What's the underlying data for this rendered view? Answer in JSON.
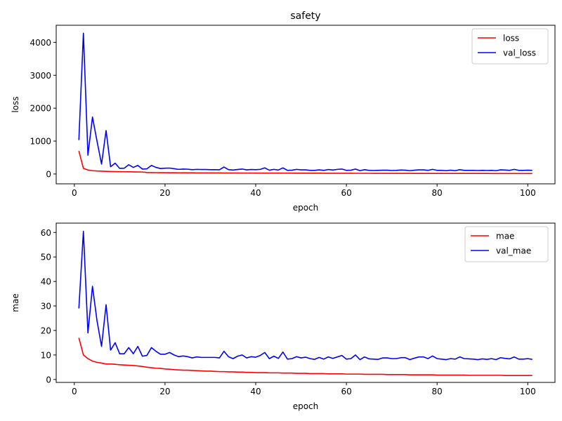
{
  "chart_data": [
    {
      "type": "line",
      "title": "safety",
      "xlabel": "epoch",
      "ylabel": "loss",
      "xlim": [
        -4,
        106
      ],
      "ylim": [
        -300,
        4520
      ],
      "xticks": [
        0,
        20,
        40,
        60,
        80,
        100
      ],
      "yticks": [
        0,
        1000,
        2000,
        3000,
        4000
      ],
      "grid": false,
      "legend": "top-right",
      "x": [
        1,
        2,
        3,
        4,
        5,
        6,
        7,
        8,
        9,
        10,
        11,
        12,
        13,
        14,
        15,
        16,
        17,
        18,
        19,
        20,
        21,
        22,
        23,
        24,
        25,
        26,
        27,
        28,
        29,
        30,
        31,
        32,
        33,
        34,
        35,
        36,
        37,
        38,
        39,
        40,
        41,
        42,
        43,
        44,
        45,
        46,
        47,
        48,
        49,
        50,
        51,
        52,
        53,
        54,
        55,
        56,
        57,
        58,
        59,
        60,
        61,
        62,
        63,
        64,
        65,
        66,
        67,
        68,
        69,
        70,
        71,
        72,
        73,
        74,
        75,
        76,
        77,
        78,
        79,
        80,
        81,
        82,
        83,
        84,
        85,
        86,
        87,
        88,
        89,
        90,
        91,
        92,
        93,
        94,
        95,
        96,
        97,
        98,
        99,
        100,
        101
      ],
      "series": [
        {
          "name": "loss",
          "color": "#ff0000",
          "values": [
            700,
            170,
            120,
            100,
            90,
            85,
            80,
            75,
            72,
            70,
            68,
            66,
            64,
            62,
            60,
            45,
            43,
            41,
            40,
            39,
            38,
            37,
            36,
            35,
            35,
            34,
            33,
            33,
            32,
            32,
            31,
            31,
            30,
            30,
            29,
            29,
            28,
            28,
            28,
            27,
            27,
            27,
            26,
            26,
            26,
            25,
            25,
            25,
            24,
            24,
            24,
            23,
            23,
            23,
            22,
            22,
            22,
            22,
            21,
            21,
            21,
            20,
            20,
            20,
            20,
            19,
            19,
            19,
            19,
            18,
            18,
            18,
            18,
            18,
            17,
            17,
            17,
            17,
            17,
            16,
            16,
            16,
            16,
            16,
            16,
            15,
            15,
            15,
            15,
            15,
            15,
            14,
            14,
            14,
            14,
            14,
            14,
            14,
            13,
            13,
            13
          ]
        },
        {
          "name": "val_loss",
          "color": "#0000ff",
          "values": [
            1030,
            4280,
            570,
            1730,
            1000,
            300,
            1320,
            220,
            330,
            170,
            175,
            280,
            200,
            260,
            150,
            155,
            260,
            200,
            165,
            175,
            180,
            160,
            140,
            150,
            145,
            130,
            140,
            135,
            135,
            130,
            130,
            128,
            210,
            130,
            120,
            135,
            150,
            125,
            135,
            130,
            140,
            185,
            115,
            140,
            120,
            185,
            110,
            115,
            140,
            125,
            125,
            110,
            110,
            125,
            110,
            135,
            120,
            140,
            150,
            110,
            115,
            150,
            100,
            130,
            110,
            105,
            110,
            115,
            115,
            105,
            110,
            120,
            115,
            100,
            115,
            125,
            125,
            110,
            140,
            110,
            110,
            100,
            115,
            100,
            130,
            110,
            110,
            110,
            105,
            110,
            105,
            110,
            100,
            125,
            120,
            110,
            140,
            110,
            110,
            115,
            110
          ]
        }
      ]
    },
    {
      "type": "line",
      "title": "",
      "xlabel": "epoch",
      "ylabel": "mae",
      "xlim": [
        -4,
        106
      ],
      "ylim": [
        -1.2,
        63.8
      ],
      "xticks": [
        0,
        20,
        40,
        60,
        80,
        100
      ],
      "yticks": [
        0,
        10,
        20,
        30,
        40,
        50,
        60
      ],
      "grid": false,
      "legend": "top-right",
      "x": [
        1,
        2,
        3,
        4,
        5,
        6,
        7,
        8,
        9,
        10,
        11,
        12,
        13,
        14,
        15,
        16,
        17,
        18,
        19,
        20,
        21,
        22,
        23,
        24,
        25,
        26,
        27,
        28,
        29,
        30,
        31,
        32,
        33,
        34,
        35,
        36,
        37,
        38,
        39,
        40,
        41,
        42,
        43,
        44,
        45,
        46,
        47,
        48,
        49,
        50,
        51,
        52,
        53,
        54,
        55,
        56,
        57,
        58,
        59,
        60,
        61,
        62,
        63,
        64,
        65,
        66,
        67,
        68,
        69,
        70,
        71,
        72,
        73,
        74,
        75,
        76,
        77,
        78,
        79,
        80,
        81,
        82,
        83,
        84,
        85,
        86,
        87,
        88,
        89,
        90,
        91,
        92,
        93,
        94,
        95,
        96,
        97,
        98,
        99,
        100,
        101
      ],
      "series": [
        {
          "name": "mae",
          "color": "#ff0000",
          "values": [
            17,
            10,
            8.5,
            7.5,
            7,
            6.7,
            6.3,
            6.3,
            6.2,
            6,
            5.9,
            5.8,
            5.7,
            5.5,
            5.3,
            5.0,
            4.8,
            4.6,
            4.5,
            4.3,
            4.2,
            4.0,
            3.9,
            3.8,
            3.8,
            3.7,
            3.6,
            3.5,
            3.4,
            3.4,
            3.3,
            3.2,
            3.2,
            3.1,
            3.1,
            3.0,
            3.0,
            2.9,
            2.9,
            2.8,
            2.8,
            2.8,
            2.7,
            2.7,
            2.7,
            2.6,
            2.6,
            2.6,
            2.5,
            2.5,
            2.5,
            2.4,
            2.4,
            2.4,
            2.4,
            2.3,
            2.3,
            2.3,
            2.3,
            2.2,
            2.2,
            2.2,
            2.2,
            2.1,
            2.1,
            2.1,
            2.1,
            2.1,
            2.0,
            2.0,
            2.0,
            2.0,
            2.0,
            1.9,
            1.9,
            1.9,
            1.9,
            1.9,
            1.9,
            1.8,
            1.8,
            1.8,
            1.8,
            1.8,
            1.8,
            1.8,
            1.7,
            1.7,
            1.7,
            1.7,
            1.7,
            1.7,
            1.7,
            1.7,
            1.6,
            1.6,
            1.6,
            1.6,
            1.6,
            1.6,
            1.6
          ]
        },
        {
          "name": "val_mae",
          "color": "#0000ff",
          "values": [
            29,
            60.5,
            19,
            38,
            24,
            13.5,
            30.5,
            12,
            15,
            10.5,
            10.5,
            13,
            10.5,
            13.5,
            9.5,
            9.8,
            13,
            11.5,
            10.3,
            10.3,
            11,
            10,
            9.3,
            9.6,
            9.3,
            8.8,
            9.2,
            9,
            9,
            9,
            9,
            8.8,
            11.5,
            9.3,
            8.5,
            9.5,
            10,
            8.8,
            9.3,
            9.1,
            9.8,
            11,
            8.5,
            9.5,
            8.6,
            11.2,
            8.3,
            8.5,
            9.3,
            8.8,
            9.1,
            8.5,
            8.2,
            9,
            8.3,
            9.2,
            8.6,
            9.2,
            9.8,
            8.3,
            8.5,
            10,
            8.1,
            9.2,
            8.4,
            8.3,
            8.2,
            8.8,
            8.8,
            8.5,
            8.5,
            8.9,
            8.9,
            8.1,
            8.7,
            9.2,
            9.2,
            8.5,
            9.6,
            8.5,
            8.3,
            8.1,
            8.5,
            8.3,
            9.2,
            8.5,
            8.4,
            8.3,
            8.1,
            8.4,
            8.2,
            8.5,
            8.1,
            8.9,
            8.6,
            8.4,
            9.2,
            8.3,
            8.3,
            8.5,
            8.2
          ]
        }
      ]
    }
  ]
}
